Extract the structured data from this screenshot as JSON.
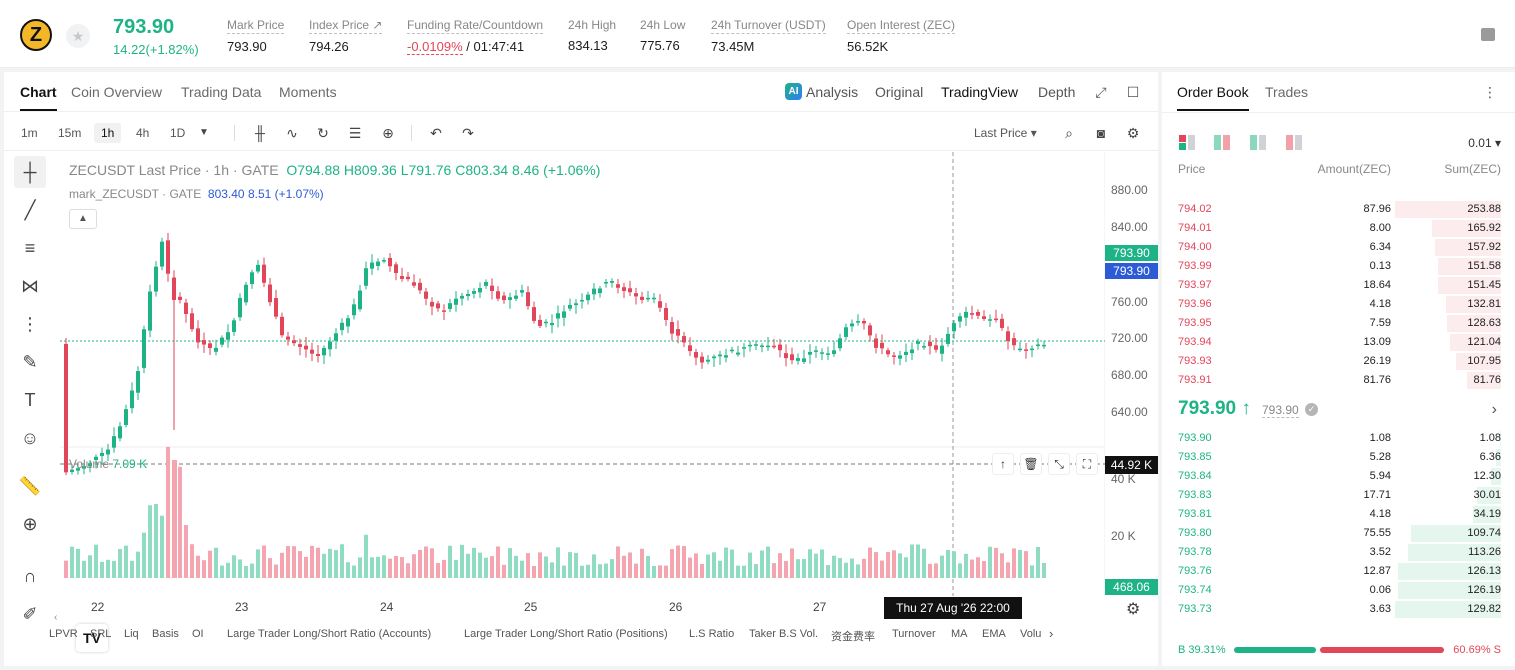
{
  "header": {
    "coin_symbol_letter": "Z",
    "last_price": "793.90",
    "change": "14.22(+1.82%)",
    "stats": [
      {
        "label": "Mark Price",
        "value": "793.90"
      },
      {
        "label": "Index Price ↗",
        "value": "794.26"
      },
      {
        "label": "Funding Rate/Countdown",
        "value_neg": "-0.0109%",
        "value": " / 01:47:41"
      },
      {
        "label": "24h High",
        "value": "834.13"
      },
      {
        "label": "24h Low",
        "value": "775.76"
      },
      {
        "label": "24h Turnover (USDT)",
        "value": "73.45M"
      },
      {
        "label": "Open Interest (ZEC)",
        "value": "56.52K"
      }
    ]
  },
  "chart_tabs": [
    "Chart",
    "Coin Overview",
    "Trading Data",
    "Moments"
  ],
  "chart_views": {
    "analysis": "Analysis",
    "original": "Original",
    "tradingview": "TradingView",
    "depth": "Depth"
  },
  "timeframes": [
    "1m",
    "15m",
    "1h",
    "4h",
    "1D"
  ],
  "last_price_select": "Last Price",
  "legend": {
    "title": "ZECUSDT Last Price · 1h · GATE",
    "ohlc": "O794.88 H809.36 L791.76 C803.34 8.46 (+1.06%)",
    "mark_label": "mark_ZECUSDT · GATE",
    "mark_values": "803.40 8.51 (+1.07%)",
    "volume_label": "Volume",
    "volume_value": "7.09 K"
  },
  "price_tags": {
    "mark": "793.90",
    "last": "793.90",
    "volume_cursor": "44.92 K",
    "volume_last": "468.06"
  },
  "x_axis": {
    "labels": [
      "22",
      "23",
      "24",
      "25",
      "26",
      "27"
    ],
    "cursor": "Thu 27 Aug '26   22:00"
  },
  "y_axis_labels": [
    "880.00",
    "840.00",
    "800.00",
    "760.00",
    "720.00",
    "680.00",
    "640.00"
  ],
  "vol_axis_labels": [
    "40 K",
    "20 K"
  ],
  "indicators": [
    "LPVR",
    "SRL",
    "Liq",
    "Basis",
    "OI",
    "Large Trader Long/Short Ratio (Accounts)",
    "Large Trader Long/Short Ratio (Positions)",
    "L.S Ratio",
    "Taker B.S Vol.",
    "资金费率",
    "Turnover",
    "MA",
    "EMA",
    "Volu"
  ],
  "colors": {
    "up": "#1eb386",
    "down": "#e2465a",
    "mark_blue": "#2d5bd6"
  },
  "orderbook": {
    "tabs": [
      "Order Book",
      "Trades"
    ],
    "tick": "0.01",
    "headers": {
      "price": "Price",
      "amount": "Amount(ZEC)",
      "sum": "Sum(ZEC)"
    },
    "asks": [
      {
        "price": "794.02",
        "amount": "87.96",
        "sum": "253.88",
        "depth": 1.0
      },
      {
        "price": "794.01",
        "amount": "8.00",
        "sum": "165.92",
        "depth": 0.654
      },
      {
        "price": "794.00",
        "amount": "6.34",
        "sum": "157.92",
        "depth": 0.622
      },
      {
        "price": "793.99",
        "amount": "0.13",
        "sum": "151.58",
        "depth": 0.597
      },
      {
        "price": "793.97",
        "amount": "18.64",
        "sum": "151.45",
        "depth": 0.597
      },
      {
        "price": "793.96",
        "amount": "4.18",
        "sum": "132.81",
        "depth": 0.523
      },
      {
        "price": "793.95",
        "amount": "7.59",
        "sum": "128.63",
        "depth": 0.507
      },
      {
        "price": "793.94",
        "amount": "13.09",
        "sum": "121.04",
        "depth": 0.477
      },
      {
        "price": "793.93",
        "amount": "26.19",
        "sum": "107.95",
        "depth": 0.425
      },
      {
        "price": "793.91",
        "amount": "81.76",
        "sum": "81.76",
        "depth": 0.322
      }
    ],
    "mid_price": "793.90 ↑",
    "mid_mark": "793.90",
    "bids": [
      {
        "price": "793.90",
        "amount": "1.08",
        "sum": "1.08",
        "depth": 0.008
      },
      {
        "price": "793.85",
        "amount": "5.28",
        "sum": "6.36",
        "depth": 0.049
      },
      {
        "price": "793.84",
        "amount": "5.94",
        "sum": "12.30",
        "depth": 0.095
      },
      {
        "price": "793.83",
        "amount": "17.71",
        "sum": "30.01",
        "depth": 0.231
      },
      {
        "price": "793.81",
        "amount": "4.18",
        "sum": "34.19",
        "depth": 0.264
      },
      {
        "price": "793.80",
        "amount": "75.55",
        "sum": "109.74",
        "depth": 0.846
      },
      {
        "price": "793.78",
        "amount": "3.52",
        "sum": "113.26",
        "depth": 0.873
      },
      {
        "price": "793.76",
        "amount": "12.87",
        "sum": "126.13",
        "depth": 0.972
      },
      {
        "price": "793.74",
        "amount": "0.06",
        "sum": "126.19",
        "depth": 0.973
      },
      {
        "price": "793.73",
        "amount": "3.63",
        "sum": "129.82",
        "depth": 1.0
      }
    ],
    "buy_ratio": "B 39.31%",
    "sell_ratio": "60.69% S"
  }
}
